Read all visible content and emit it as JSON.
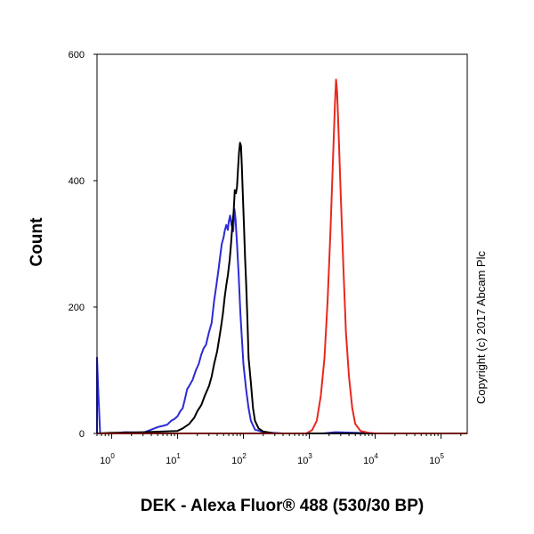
{
  "chart_data": {
    "type": "line",
    "title": "",
    "xlabel": "DEK - Alexa Fluor® 488 (530/30 BP)",
    "ylabel": "Count",
    "x_scale": "log",
    "xlim": [
      0.6,
      250000
    ],
    "ylim": [
      0,
      600
    ],
    "x_ticks": [
      {
        "base": "10",
        "exp": "0",
        "value": 1
      },
      {
        "base": "10",
        "exp": "1",
        "value": 10
      },
      {
        "base": "10",
        "exp": "2",
        "value": 100
      },
      {
        "base": "10",
        "exp": "3",
        "value": 1000
      },
      {
        "base": "10",
        "exp": "4",
        "value": 10000
      },
      {
        "base": "10",
        "exp": "5",
        "value": 100000
      }
    ],
    "y_ticks": [
      "0",
      "200",
      "400",
      "600"
    ],
    "grid": false,
    "series": [
      {
        "color": "#2b2bd6",
        "points": [
          [
            0.6,
            0
          ],
          [
            0.6,
            120
          ],
          [
            0.63,
            60
          ],
          [
            0.67,
            0
          ],
          [
            1,
            0
          ],
          [
            1.6,
            2
          ],
          [
            3,
            1
          ],
          [
            4,
            6
          ],
          [
            5,
            10
          ],
          [
            6,
            12
          ],
          [
            7,
            14
          ],
          [
            8,
            20
          ],
          [
            9,
            23
          ],
          [
            10,
            27
          ],
          [
            11,
            35
          ],
          [
            12,
            40
          ],
          [
            13,
            55
          ],
          [
            14,
            70
          ],
          [
            15,
            75
          ],
          [
            17,
            85
          ],
          [
            19,
            100
          ],
          [
            21,
            110
          ],
          [
            23,
            125
          ],
          [
            25,
            135
          ],
          [
            27,
            140
          ],
          [
            30,
            160
          ],
          [
            33,
            175
          ],
          [
            36,
            210
          ],
          [
            39,
            235
          ],
          [
            42,
            260
          ],
          [
            45,
            285
          ],
          [
            47,
            300
          ],
          [
            50,
            310
          ],
          [
            52,
            320
          ],
          [
            55,
            330
          ],
          [
            58,
            322
          ],
          [
            60,
            335
          ],
          [
            63,
            345
          ],
          [
            66,
            330
          ],
          [
            70,
            320
          ],
          [
            73,
            355
          ],
          [
            76,
            340
          ],
          [
            80,
            300
          ],
          [
            85,
            250
          ],
          [
            90,
            190
          ],
          [
            95,
            150
          ],
          [
            100,
            110
          ],
          [
            110,
            70
          ],
          [
            120,
            40
          ],
          [
            130,
            20
          ],
          [
            150,
            6
          ],
          [
            200,
            2
          ],
          [
            400,
            0
          ],
          [
            1600,
            0
          ],
          [
            2500,
            2
          ],
          [
            5000,
            1
          ],
          [
            10000,
            0
          ],
          [
            250000,
            0
          ]
        ]
      },
      {
        "color": "#000000",
        "points": [
          [
            0.6,
            0
          ],
          [
            1,
            1
          ],
          [
            3,
            2
          ],
          [
            10,
            4
          ],
          [
            12,
            8
          ],
          [
            15,
            15
          ],
          [
            18,
            25
          ],
          [
            20,
            35
          ],
          [
            23,
            45
          ],
          [
            26,
            60
          ],
          [
            30,
            75
          ],
          [
            33,
            90
          ],
          [
            36,
            110
          ],
          [
            40,
            130
          ],
          [
            43,
            150
          ],
          [
            46,
            170
          ],
          [
            49,
            190
          ],
          [
            52,
            215
          ],
          [
            55,
            235
          ],
          [
            58,
            250
          ],
          [
            62,
            275
          ],
          [
            65,
            300
          ],
          [
            68,
            330
          ],
          [
            71,
            350
          ],
          [
            74,
            385
          ],
          [
            77,
            380
          ],
          [
            80,
            390
          ],
          [
            83,
            420
          ],
          [
            86,
            445
          ],
          [
            89,
            460
          ],
          [
            92,
            455
          ],
          [
            95,
            420
          ],
          [
            98,
            380
          ],
          [
            102,
            330
          ],
          [
            106,
            280
          ],
          [
            110,
            240
          ],
          [
            115,
            180
          ],
          [
            120,
            120
          ],
          [
            130,
            80
          ],
          [
            140,
            40
          ],
          [
            150,
            20
          ],
          [
            170,
            8
          ],
          [
            200,
            3
          ],
          [
            300,
            0
          ],
          [
            250000,
            0
          ]
        ]
      },
      {
        "color": "#e8281f",
        "points": [
          [
            0.6,
            0
          ],
          [
            900,
            0
          ],
          [
            1100,
            5
          ],
          [
            1300,
            20
          ],
          [
            1500,
            60
          ],
          [
            1700,
            120
          ],
          [
            1900,
            210
          ],
          [
            2100,
            320
          ],
          [
            2300,
            440
          ],
          [
            2450,
            520
          ],
          [
            2550,
            560
          ],
          [
            2650,
            540
          ],
          [
            2800,
            470
          ],
          [
            3000,
            380
          ],
          [
            3300,
            260
          ],
          [
            3600,
            160
          ],
          [
            4000,
            90
          ],
          [
            4500,
            40
          ],
          [
            5000,
            15
          ],
          [
            6000,
            4
          ],
          [
            8000,
            1
          ],
          [
            10000,
            0
          ],
          [
            250000,
            0
          ]
        ]
      }
    ],
    "side_note": "Copyright (c) 2017 Abcam Plc"
  }
}
